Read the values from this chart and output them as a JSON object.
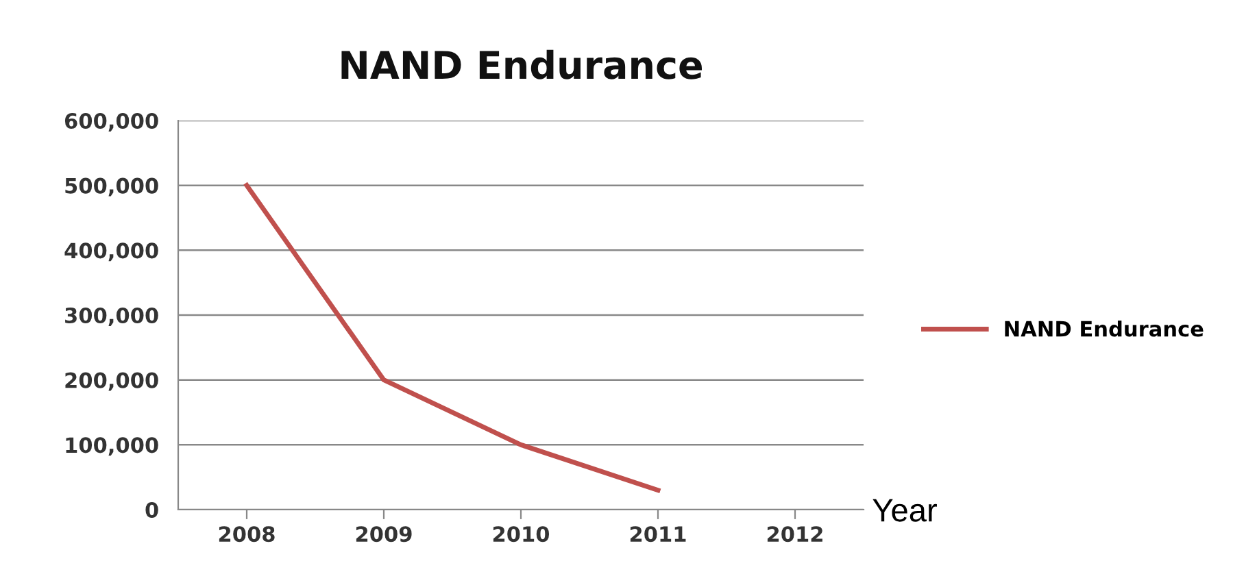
{
  "chart_data": {
    "type": "line",
    "title": "NAND Endurance",
    "xlabel": "Year",
    "categories": [
      "2008",
      "2009",
      "2010",
      "2011",
      "2012"
    ],
    "series": [
      {
        "name": "NAND Endurance",
        "color": "#c0504d",
        "values": [
          500000,
          200000,
          100000,
          30000,
          null
        ]
      }
    ],
    "ylim": [
      0,
      600000
    ],
    "yticks": [
      {
        "value": 0,
        "label": "0"
      },
      {
        "value": 100000,
        "label": "100,000"
      },
      {
        "value": 200000,
        "label": "200,000"
      },
      {
        "value": 300000,
        "label": "300,000"
      },
      {
        "value": 400000,
        "label": "400,000"
      },
      {
        "value": 500000,
        "label": "500,000"
      },
      {
        "value": 600000,
        "label": "600,000"
      }
    ],
    "grid": "y",
    "legend": "right",
    "marker": "none",
    "line_style": "solid"
  }
}
